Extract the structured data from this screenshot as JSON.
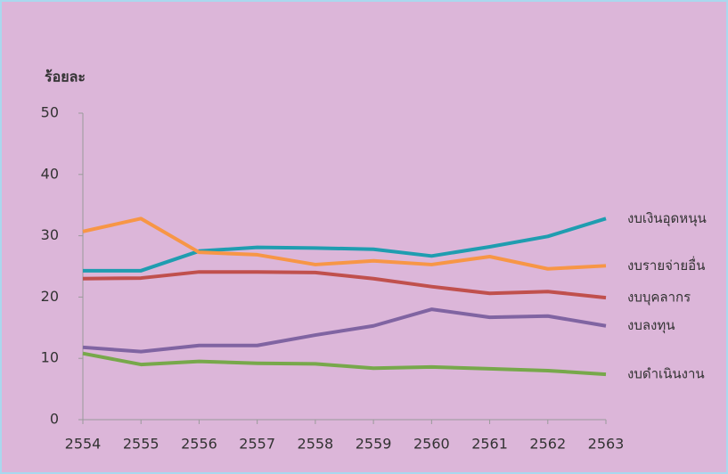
{
  "chart_data": {
    "type": "line",
    "ylabel": "ร้อยละ",
    "categories": [
      "2554",
      "2555",
      "2556",
      "2557",
      "2558",
      "2559",
      "2560",
      "2561",
      "2562",
      "2563"
    ],
    "series": [
      {
        "name": "งบเงินอุดหนุน",
        "color": "#1f9db0",
        "label_color": "#3a8fd9",
        "values": [
          24.3,
          24.3,
          27.5,
          28.1,
          28.0,
          27.8,
          26.7,
          28.2,
          29.9,
          32.8
        ]
      },
      {
        "name": "งบรายจ่ายอื่น",
        "color": "#f79646",
        "label_color": "#f79646",
        "values": [
          30.7,
          32.8,
          27.3,
          26.9,
          25.3,
          25.9,
          25.3,
          26.6,
          24.6,
          25.1
        ]
      },
      {
        "name": "งบบุคลากร",
        "color": "#c0504d",
        "label_color": "#d0383a",
        "values": [
          23.0,
          23.1,
          24.1,
          24.1,
          24.0,
          23.0,
          21.7,
          20.6,
          20.9,
          19.9
        ]
      },
      {
        "name": "งบลงทุน",
        "color": "#8064a2",
        "label_color": "#8e3fa8",
        "values": [
          11.8,
          11.1,
          12.1,
          12.1,
          13.8,
          15.3,
          18.0,
          16.7,
          16.9,
          15.3
        ]
      },
      {
        "name": "งบดำเนินงาน",
        "color": "#77a84b",
        "label_color": "#6a9e3c",
        "values": [
          10.8,
          9.0,
          9.5,
          9.2,
          9.1,
          8.4,
          8.6,
          8.3,
          8.0,
          7.4
        ]
      }
    ],
    "ylim": [
      0,
      50
    ],
    "yticks": [
      0,
      10,
      20,
      30,
      40,
      50
    ],
    "grid": false
  }
}
